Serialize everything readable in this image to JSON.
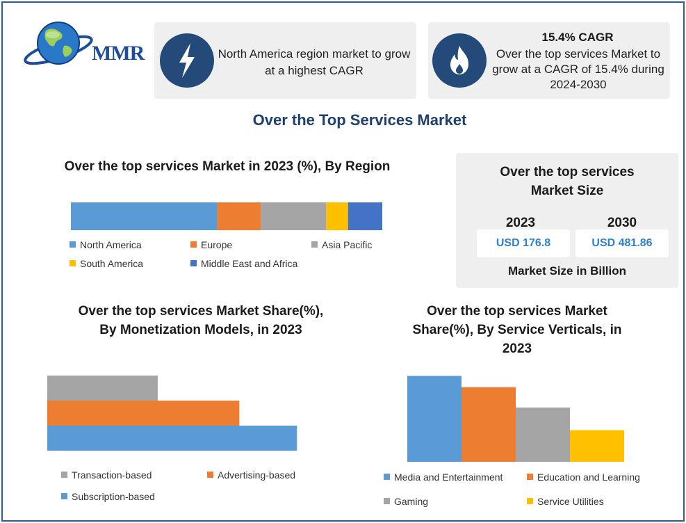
{
  "logo": {
    "text": "MMR"
  },
  "box1": {
    "text": "North America region market to grow at a highest CAGR",
    "icon": "lightning-icon"
  },
  "box2": {
    "title": "15.4% CAGR",
    "text": "Over the top services Market to grow at a CAGR of 15.4% during 2024-2030",
    "icon": "flame-icon"
  },
  "main_title": "Over the Top Services Market",
  "market_size": {
    "title": "Over the top services Market Size",
    "years": [
      {
        "year": "2023",
        "value": "USD 176.8"
      },
      {
        "year": "2030",
        "value": "USD 481.86"
      }
    ],
    "note": "Market Size in Billion"
  },
  "colors": {
    "blue": "#5b9bd5",
    "orange": "#ed7d31",
    "gray": "#a5a5a5",
    "yellow": "#ffc000",
    "darkblue": "#4472c4",
    "navy": "#244a7a"
  },
  "chart_data": [
    {
      "type": "bar",
      "orientation": "horizontal-stacked",
      "title": "Over the top services Market in 2023 (%), By Region",
      "series": [
        {
          "name": "North America",
          "values": [
            47
          ],
          "color": "#5b9bd5"
        },
        {
          "name": "Europe",
          "values": [
            14
          ],
          "color": "#ed7d31"
        },
        {
          "name": "Asia Pacific",
          "values": [
            21
          ],
          "color": "#a5a5a5"
        },
        {
          "name": "South America",
          "values": [
            7
          ],
          "color": "#ffc000"
        },
        {
          "name": "Middle East and Africa",
          "values": [
            11
          ],
          "color": "#4472c4"
        }
      ],
      "xlim": [
        0,
        100
      ],
      "legend": "bottom"
    },
    {
      "type": "bar",
      "orientation": "horizontal",
      "title": "Over the top services Market Share(%), By Monetization Models, in 2023",
      "series": [
        {
          "name": "Transaction-based",
          "values": [
            23
          ],
          "color": "#a5a5a5"
        },
        {
          "name": "Advertising-based",
          "values": [
            40
          ],
          "color": "#ed7d31"
        },
        {
          "name": "Subscription-based",
          "values": [
            52
          ],
          "color": "#5b9bd5"
        }
      ],
      "xlim": [
        0,
        55
      ],
      "legend": "bottom"
    },
    {
      "type": "bar",
      "orientation": "vertical",
      "title": "Over the top services Market Share(%), By Service Verticals, in 2023",
      "series": [
        {
          "name": "Media and Entertainment",
          "values": [
            38
          ],
          "color": "#5b9bd5"
        },
        {
          "name": "Education and Learning",
          "values": [
            33
          ],
          "color": "#ed7d31"
        },
        {
          "name": "Gaming",
          "values": [
            24
          ],
          "color": "#a5a5a5"
        },
        {
          "name": "Service Utilities",
          "values": [
            14
          ],
          "color": "#ffc000"
        }
      ],
      "ylim": [
        0,
        40
      ],
      "legend": "bottom"
    }
  ]
}
